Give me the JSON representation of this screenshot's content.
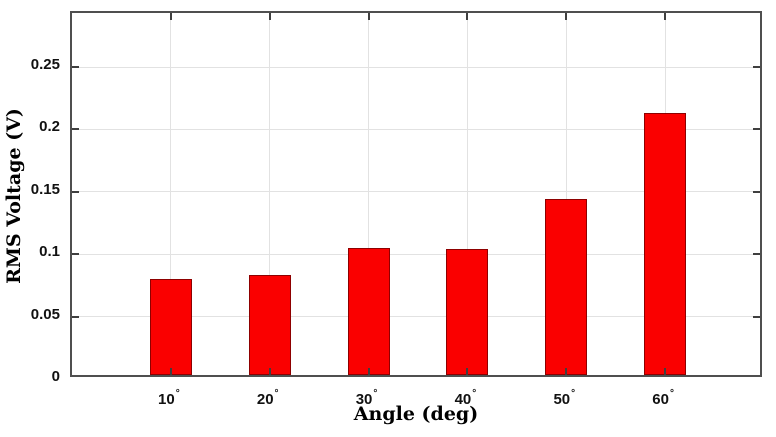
{
  "chart_data": {
    "type": "bar",
    "title": "",
    "categories": [
      "10°",
      "20°",
      "30°",
      "40°",
      "50°",
      "60°"
    ],
    "values": [
      0.077,
      0.08,
      0.102,
      0.101,
      0.141,
      0.21
    ],
    "xlabel": "Angle (deg)",
    "ylabel": "RMS Voltage (V)",
    "ylim": [
      0,
      0.2933
    ],
    "yticks": [
      0,
      0.05,
      0.1,
      0.15,
      0.2,
      0.25
    ],
    "ytick_labels": [
      "0",
      "0.05",
      "0.1",
      "0.15",
      "0.2",
      "0.25"
    ],
    "grid": true,
    "legend": false,
    "bar_color": "#fa0000",
    "bar_edge_color": "#8e0000",
    "grid_color": "#e2e2e2",
    "axis_color": "#4f4f4f"
  }
}
